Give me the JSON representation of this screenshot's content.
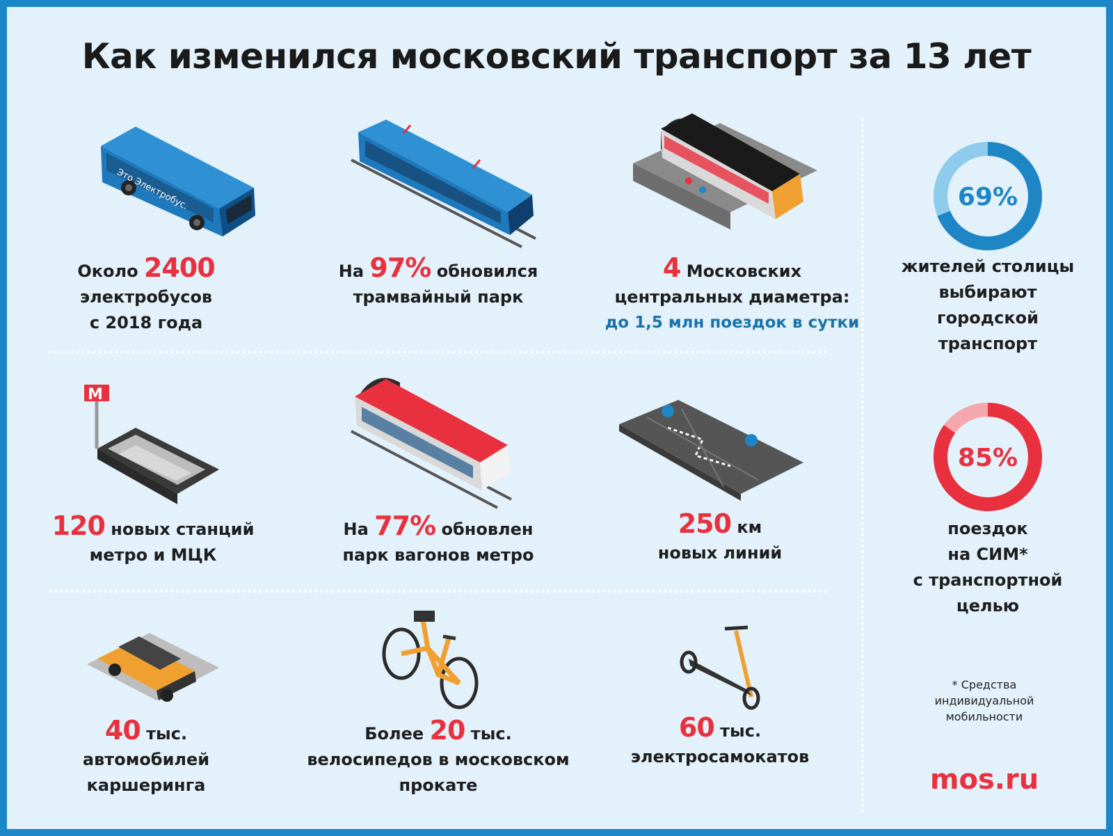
{
  "title": "Как изменился московский транспорт за 13 лет",
  "cards": [
    {
      "pre": "Около ",
      "number": "2400",
      "post": "",
      "lines": [
        "электробусов",
        "с 2018 года"
      ]
    },
    {
      "pre": "На ",
      "number": "97%",
      "post": " обновился",
      "lines": [
        "трамвайный парк"
      ]
    },
    {
      "pre": "",
      "number": "4",
      "post": " Московских",
      "lines": [
        "центральных диаметра:"
      ],
      "highlight": "до 1,5 млн поездок в сутки"
    },
    {
      "pre": "",
      "number": "120",
      "post": " новых станций",
      "lines": [
        "метро и МЦК"
      ]
    },
    {
      "pre": "На ",
      "number": "77%",
      "post": " обновлен",
      "lines": [
        "парк вагонов метро"
      ]
    },
    {
      "pre": "",
      "number": "250",
      "post": " км",
      "lines": [
        "новых линий"
      ]
    },
    {
      "pre": "",
      "number": "40",
      "post": " тыс.",
      "lines": [
        "автомобилей",
        "каршеринга"
      ]
    },
    {
      "pre": "Более ",
      "number": "20",
      "post": " тыс.",
      "lines": [
        "велосипедов в московском",
        "прокате"
      ]
    },
    {
      "pre": "",
      "number": "60",
      "post": " тыс.",
      "lines": [
        "электросамокатов"
      ]
    }
  ],
  "bus_text": "Это Электробус.",
  "metro_sign": "М",
  "rings": [
    {
      "value": 69,
      "label": "69%",
      "caption": [
        "жителей столицы",
        "выбирают",
        "городской",
        "транспорт"
      ],
      "color": "#1f86c6",
      "track": "#8ecbec"
    },
    {
      "value": 85,
      "label": "85%",
      "caption": [
        "поездок",
        "на СИМ*",
        "с транспортной",
        "целью"
      ],
      "color": "#e8303f",
      "track": "#f5a7ae"
    }
  ],
  "footnote": [
    "* Средства",
    "индивидуальной",
    "мобильности"
  ],
  "logo": "mos.ru",
  "colors": {
    "accent_red": "#e8303f",
    "accent_blue": "#1f86c6",
    "background": "#e3f1fa",
    "border": "#1b87c8"
  }
}
